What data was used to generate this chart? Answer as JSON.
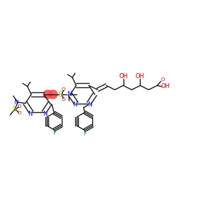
{
  "bg_color": "#ffffff",
  "figsize": [
    3.0,
    3.0
  ],
  "dpi": 100,
  "bond_color": "#1a1a1a",
  "N_color": "#1414ff",
  "O_color": "#cc0000",
  "S_color": "#bbbb00",
  "F_color": "#00aaaa",
  "highlight_color": "#ff4444",
  "lw": 1.0,
  "xlim": [
    0.0,
    1.0
  ],
  "ylim": [
    0.25,
    0.85
  ]
}
